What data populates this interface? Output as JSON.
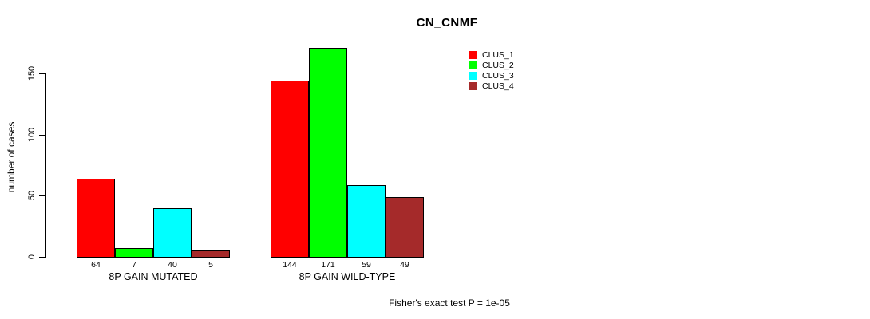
{
  "chart_data": {
    "type": "bar",
    "title": "CN_CNMF",
    "ylabel": "number of cases",
    "xlabel": "",
    "ylim": [
      0,
      175
    ],
    "yticks": [
      0,
      50,
      100,
      150
    ],
    "grid": false,
    "legend_position": "top-right",
    "categories": [
      "8P GAIN MUTATED",
      "8P GAIN WILD-TYPE"
    ],
    "series": [
      {
        "name": "CLUS_1",
        "color": "#FF0000",
        "values": [
          64,
          144
        ]
      },
      {
        "name": "CLUS_2",
        "color": "#00FF00",
        "values": [
          7,
          171
        ]
      },
      {
        "name": "CLUS_3",
        "color": "#00FFFF",
        "values": [
          40,
          59
        ]
      },
      {
        "name": "CLUS_4",
        "color": "#A52A2A",
        "values": [
          5,
          49
        ]
      }
    ],
    "bar_value_labels": [
      [
        "64",
        "7",
        "40",
        "5"
      ],
      [
        "144",
        "171",
        "59",
        "49"
      ]
    ],
    "annotation": "Fisher's exact test P = 1e-05"
  }
}
